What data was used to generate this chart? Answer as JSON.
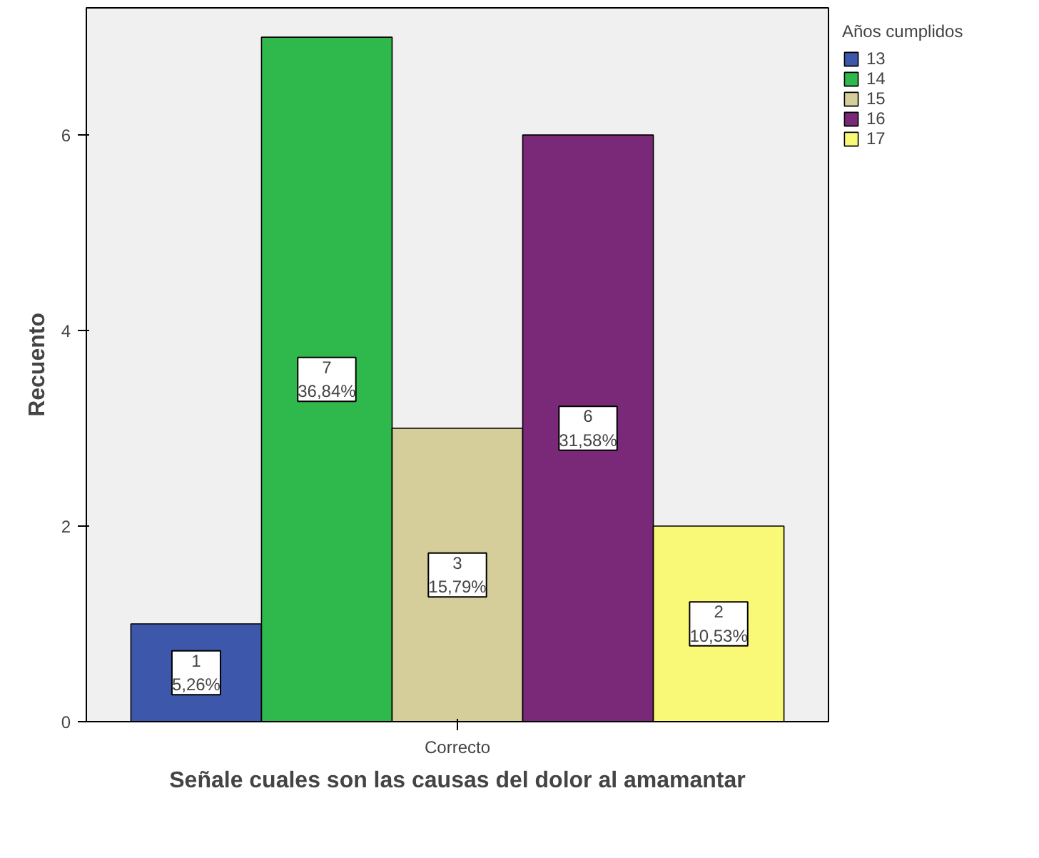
{
  "chart_data": {
    "type": "bar",
    "xlabel": "Señale cuales son las causas del dolor al amamantar",
    "ylabel": "Recuento",
    "legend_title": "Años cumplidos",
    "categories": [
      "Correcto"
    ],
    "series": [
      {
        "name": "13",
        "color": "#3d57aa",
        "values": [
          1
        ],
        "value_labels": [
          "1\n5,26%"
        ]
      },
      {
        "name": "14",
        "color": "#2fb84b",
        "values": [
          7
        ],
        "value_labels": [
          "7\n36,84%"
        ]
      },
      {
        "name": "15",
        "color": "#d5cd9a",
        "values": [
          3
        ],
        "value_labels": [
          "3\n15,79%"
        ]
      },
      {
        "name": "16",
        "color": "#7a2878",
        "values": [
          6
        ],
        "value_labels": [
          "6\n31,58%"
        ]
      },
      {
        "name": "17",
        "color": "#faf877",
        "values": [
          2
        ],
        "value_labels": [
          "2\n10,53%"
        ]
      }
    ],
    "ylim": [
      0,
      7.3
    ],
    "yticks": [
      0,
      2,
      4,
      6
    ],
    "grid": false,
    "legend": "right"
  }
}
